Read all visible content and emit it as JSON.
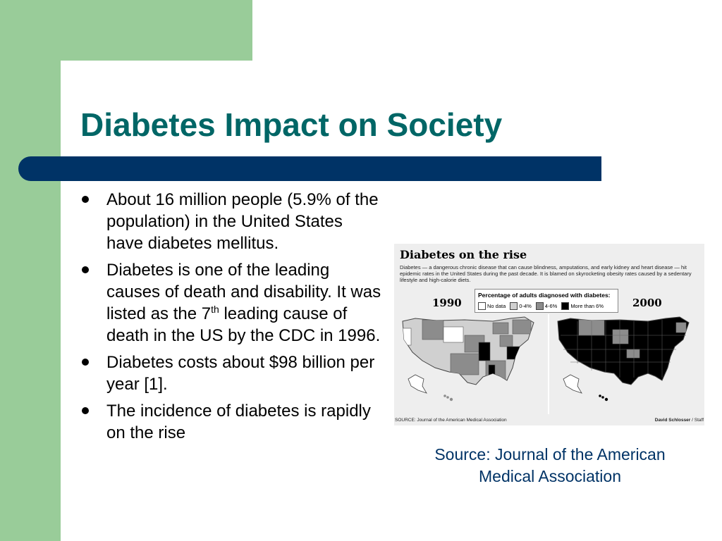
{
  "slide": {
    "title": "Diabetes Impact on Society",
    "colors": {
      "title": "#006666",
      "title_bar": "#003366",
      "accent_green": "#99cc99",
      "caption": "#003366"
    }
  },
  "bullets": [
    {
      "text": "About 16 million people (5.9% of the population) in the United States have diabetes mellitus."
    },
    {
      "before": "Diabetes is one of the leading causes of death and disability. It was listed as the 7",
      "sup": "th",
      "after": " leading cause of death in the US by the CDC in 1996."
    },
    {
      "text": "Diabetes costs about $98 billion per year [1]."
    },
    {
      "text": "The incidence of diabetes is rapidly on the rise"
    }
  ],
  "figure": {
    "title": "Diabetes on the rise",
    "description": "Diabetes — a dangerous chronic disease that can cause blindness, amputations, and early kidney and heart disease — hit epidemic rates in the United States during the past decade. It is blamed on skyrocketing obesity rates caused by a sedentary lifestyle and high-calorie diets.",
    "legend_title": "Percentage of adults diagnosed with diabetes:",
    "legend": [
      {
        "label": "No data",
        "color": "#ffffff"
      },
      {
        "label": "0-4%",
        "color": "#d0d0d0"
      },
      {
        "label": "4-6%",
        "color": "#8c8c8c"
      },
      {
        "label": "More than 6%",
        "color": "#000000"
      }
    ],
    "year_left": "1990",
    "year_right": "2000",
    "source": "SOURCE: Journal of the American Medical Association",
    "credit_name": "David Schlosser",
    "credit_suffix": " / Staff"
  },
  "caption": "Source: Journal of the American Medical Association"
}
